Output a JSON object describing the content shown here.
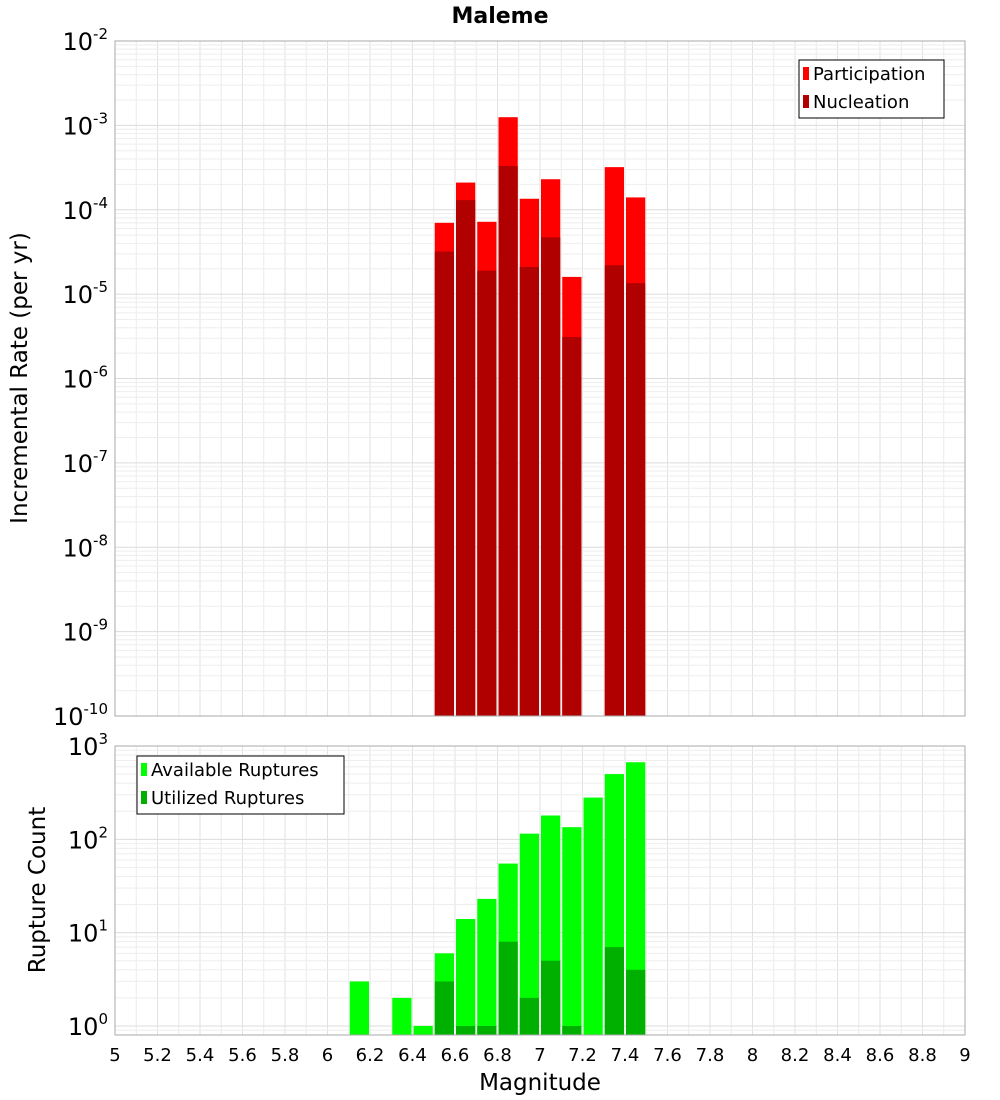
{
  "chart_data": [
    {
      "type": "bar",
      "title": "Maleme",
      "xlabel": "",
      "ylabel": "Incremental Rate (per yr)",
      "yscale": "log",
      "ylim": [
        1e-10,
        0.01
      ],
      "xlim": [
        5,
        9
      ],
      "bar_width": 0.1,
      "grid": true,
      "legend_position": "top-right",
      "y_ticks": [
        {
          "base": "10",
          "exp": "-10"
        },
        {
          "base": "10",
          "exp": "-9"
        },
        {
          "base": "10",
          "exp": "-8"
        },
        {
          "base": "10",
          "exp": "-7"
        },
        {
          "base": "10",
          "exp": "-6"
        },
        {
          "base": "10",
          "exp": "-5"
        },
        {
          "base": "10",
          "exp": "-4"
        },
        {
          "base": "10",
          "exp": "-3"
        },
        {
          "base": "10",
          "exp": "-2"
        }
      ],
      "x": [
        6.55,
        6.65,
        6.75,
        6.85,
        6.95,
        7.05,
        7.15,
        7.35,
        7.45
      ],
      "series": [
        {
          "name": "Participation",
          "color": "#ff0000",
          "values": [
            7e-05,
            0.00021,
            7.2e-05,
            0.00125,
            0.000135,
            0.00023,
            1.6e-05,
            0.00032,
            0.00014
          ]
        },
        {
          "name": "Nucleation",
          "color": "#b00000",
          "values": [
            3.2e-05,
            0.00013,
            1.9e-05,
            0.00033,
            2.1e-05,
            4.7e-05,
            3.1e-06,
            2.2e-05,
            1.35e-05
          ]
        }
      ]
    },
    {
      "type": "bar",
      "title": "",
      "xlabel": "Magnitude",
      "ylabel": "Rupture Count",
      "yscale": "log",
      "ylim": [
        0.8,
        1000
      ],
      "xlim": [
        5,
        9
      ],
      "bar_width": 0.1,
      "grid": true,
      "legend_position": "top-left",
      "y_ticks": [
        {
          "base": "10",
          "exp": "0",
          "value": 1
        },
        {
          "base": "10",
          "exp": "1",
          "value": 10
        },
        {
          "base": "10",
          "exp": "2",
          "value": 100
        },
        {
          "base": "10",
          "exp": "3",
          "value": 1000
        }
      ],
      "x_ticks": [
        "5",
        "5.2",
        "5.4",
        "5.6",
        "5.8",
        "6",
        "6.2",
        "6.4",
        "6.6",
        "6.8",
        "7",
        "7.2",
        "7.4",
        "7.6",
        "7.8",
        "8",
        "8.2",
        "8.4",
        "8.6",
        "8.8",
        "9"
      ],
      "series": [
        {
          "name": "Available Ruptures",
          "color": "#00ff00",
          "x": [
            6.15,
            6.35,
            6.45,
            6.55,
            6.65,
            6.75,
            6.85,
            6.95,
            7.05,
            7.15,
            7.25,
            7.35,
            7.45
          ],
          "values": [
            3,
            2,
            1,
            6,
            14,
            23,
            55,
            115,
            180,
            135,
            280,
            500,
            670
          ]
        },
        {
          "name": "Utilized Ruptures",
          "color": "#00b000",
          "x": [
            6.55,
            6.65,
            6.75,
            6.85,
            6.95,
            7.05,
            7.15,
            7.35,
            7.45
          ],
          "values": [
            3,
            1,
            1,
            8,
            2,
            5,
            1,
            7,
            4
          ]
        }
      ]
    }
  ]
}
